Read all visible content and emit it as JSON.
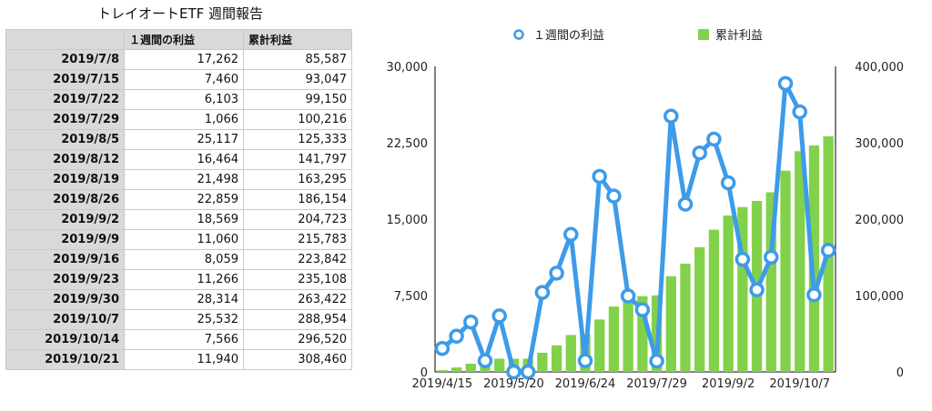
{
  "title": "トレイオートETF 週間報告",
  "table": {
    "headers": [
      "",
      "１週間の利益",
      "累計利益"
    ],
    "rows": [
      [
        "2019/7/8",
        "17,262",
        "85,587"
      ],
      [
        "2019/7/15",
        "7,460",
        "93,047"
      ],
      [
        "2019/7/22",
        "6,103",
        "99,150"
      ],
      [
        "2019/7/29",
        "1,066",
        "100,216"
      ],
      [
        "2019/8/5",
        "25,117",
        "125,333"
      ],
      [
        "2019/8/12",
        "16,464",
        "141,797"
      ],
      [
        "2019/8/19",
        "21,498",
        "163,295"
      ],
      [
        "2019/8/26",
        "22,859",
        "186,154"
      ],
      [
        "2019/9/2",
        "18,569",
        "204,723"
      ],
      [
        "2019/9/9",
        "11,060",
        "215,783"
      ],
      [
        "2019/9/16",
        "8,059",
        "223,842"
      ],
      [
        "2019/9/23",
        "11,266",
        "235,108"
      ],
      [
        "2019/9/30",
        "28,314",
        "263,422"
      ],
      [
        "2019/10/7",
        "25,532",
        "288,954"
      ],
      [
        "2019/10/14",
        "7,566",
        "296,520"
      ],
      [
        "2019/10/21",
        "11,940",
        "308,460"
      ]
    ]
  },
  "chart_data": {
    "type": "bar+line",
    "categories": [
      "2019/4/15",
      "2019/4/22",
      "2019/4/29",
      "2019/5/6",
      "2019/5/13",
      "2019/5/20",
      "2019/5/27",
      "2019/6/3",
      "2019/6/10",
      "2019/6/17",
      "2019/6/24",
      "2019/7/1",
      "2019/7/8",
      "2019/7/15",
      "2019/7/22",
      "2019/7/29",
      "2019/8/5",
      "2019/8/12",
      "2019/8/19",
      "2019/8/26",
      "2019/9/2",
      "2019/9/9",
      "2019/9/16",
      "2019/9/23",
      "2019/9/30",
      "2019/10/7",
      "2019/10/14",
      "2019/10/21"
    ],
    "x_tick_labels": [
      "2019/4/15",
      "2019/5/20",
      "2019/6/24",
      "2019/7/29",
      "2019/9/2",
      "2019/10/7"
    ],
    "series": [
      {
        "name": "１週間の利益",
        "kind": "line",
        "axis": "left",
        "color": "#3d9be9",
        "values": [
          2300,
          3500,
          4900,
          1100,
          5500,
          0,
          0,
          7800,
          9700,
          13500,
          1100,
          19200,
          17262,
          7460,
          6103,
          1066,
          25117,
          16464,
          21498,
          22859,
          18569,
          11060,
          8059,
          11266,
          28314,
          25532,
          7566,
          11940
        ]
      },
      {
        "name": "累計利益",
        "kind": "bar",
        "axis": "right",
        "color": "#82d14a",
        "values": [
          2300,
          5800,
          10700,
          11800,
          17300,
          17300,
          17300,
          25100,
          34800,
          48300,
          49400,
          68600,
          85587,
          93047,
          99150,
          100216,
          125333,
          141797,
          163295,
          186154,
          204723,
          215783,
          223842,
          235108,
          263422,
          288954,
          296520,
          308460
        ]
      }
    ],
    "y_left": {
      "ticks": [
        "0",
        "7,500",
        "15,000",
        "22,500",
        "30,000"
      ],
      "lim": [
        0,
        30000
      ]
    },
    "y_right": {
      "ticks": [
        "0",
        "100,000",
        "200,000",
        "300,000",
        "400,000"
      ],
      "lim": [
        0,
        400000
      ]
    },
    "legend_position": "top"
  }
}
